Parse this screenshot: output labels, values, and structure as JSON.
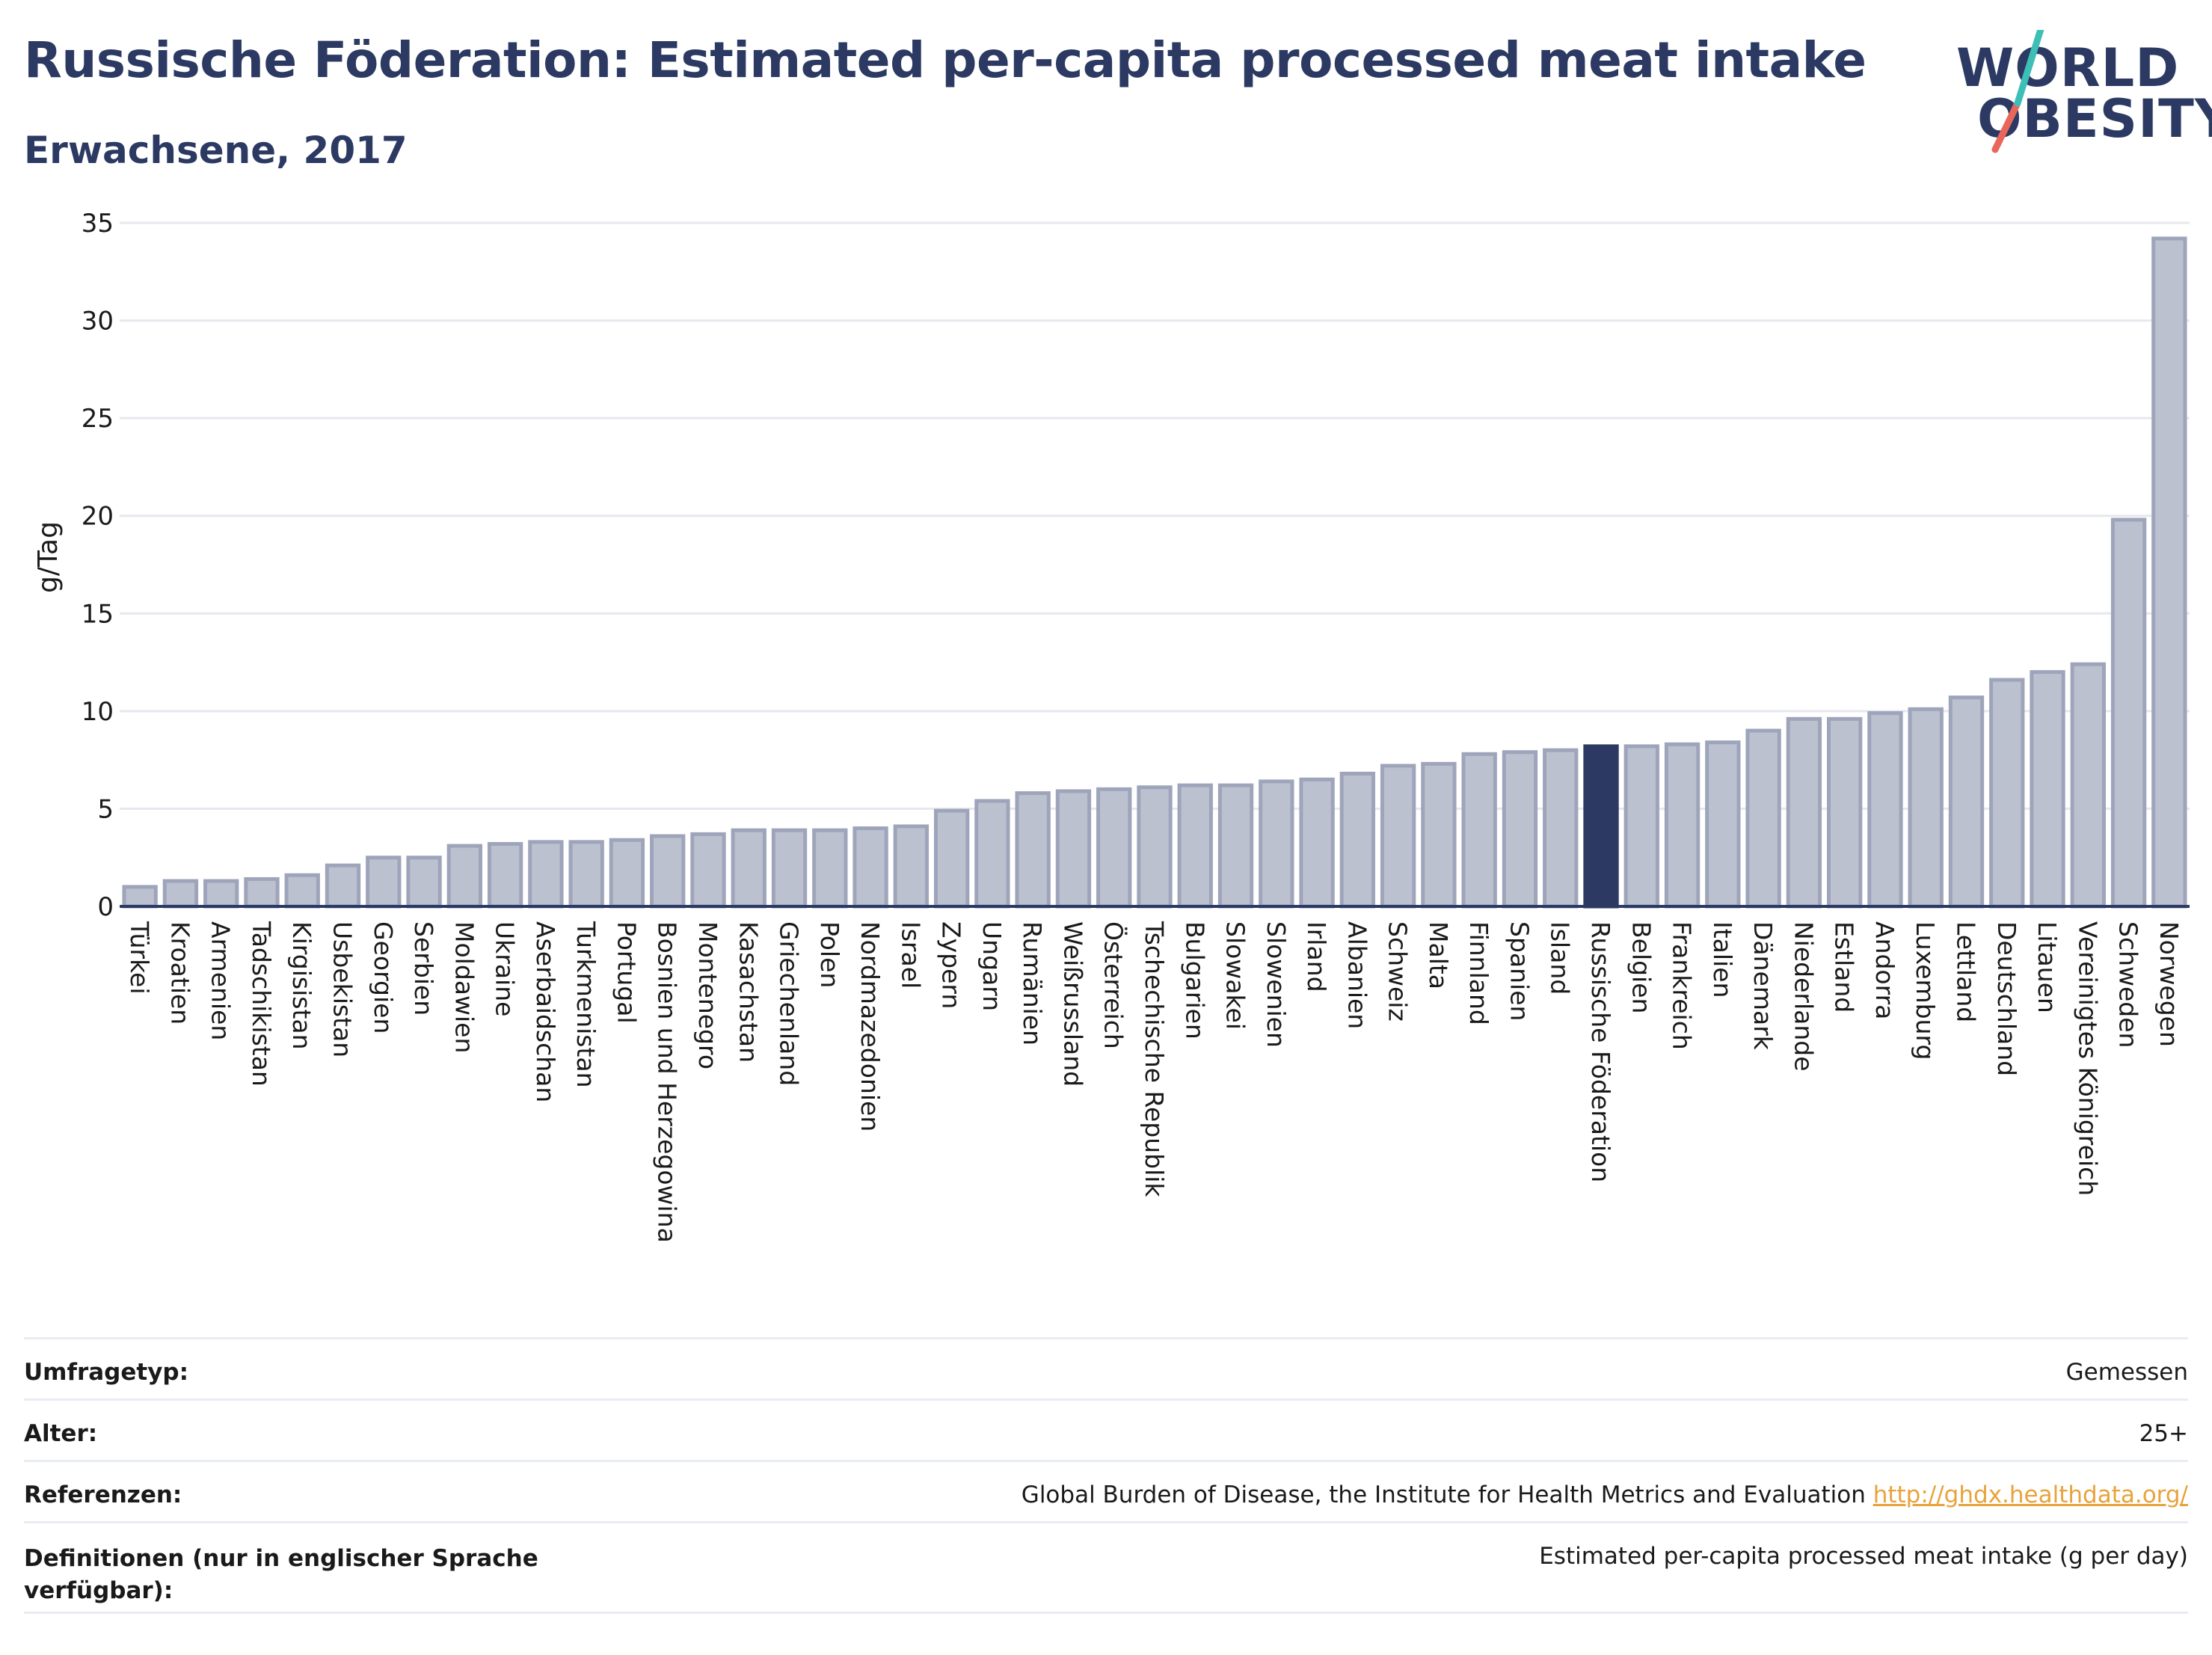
{
  "header": {
    "title": "Russische Föderation: Estimated per-capita processed meat intake",
    "subtitle": "Erwachsene, 2017"
  },
  "logo": {
    "line1": "WORLD",
    "line2": "OBESITY",
    "colors": {
      "text": "#2c3a63",
      "slash_top": "#3dbfb8",
      "slash_bottom": "#e8675a"
    }
  },
  "colors": {
    "bar_fill": "#bcc1cf",
    "bar_stroke": "#9ea5bb",
    "highlight": "#2c3a63",
    "axis_text": "#1a1a1a",
    "grid": "#e6e8ee"
  },
  "chart_data": {
    "type": "bar",
    "ylabel": "g/Tag",
    "ylim": [
      0,
      35
    ],
    "yticks": [
      0,
      5,
      10,
      15,
      20,
      25,
      30,
      35
    ],
    "grid": true,
    "highlight": "Russische Föderation",
    "categories": [
      "Türkei",
      "Kroatien",
      "Armenien",
      "Tadschikistan",
      "Kirgisistan",
      "Usbekistan",
      "Georgien",
      "Serbien",
      "Moldawien",
      "Ukraine",
      "Aserbaidschan",
      "Turkmenistan",
      "Portugal",
      "Bosnien und Herzegowina",
      "Montenegro",
      "Kasachstan",
      "Griechenland",
      "Polen",
      "Nordmazedonien",
      "Israel",
      "Zypern",
      "Ungarn",
      "Rumänien",
      "Weißrussland",
      "Österreich",
      "Tschechische Republik",
      "Bulgarien",
      "Slowakei",
      "Slowenien",
      "Irland",
      "Albanien",
      "Schweiz",
      "Malta",
      "Finnland",
      "Spanien",
      "Island",
      "Russische Föderation",
      "Belgien",
      "Frankreich",
      "Italien",
      "Dänemark",
      "Niederlande",
      "Estland",
      "Andorra",
      "Luxemburg",
      "Lettland",
      "Deutschland",
      "Litauen",
      "Vereinigtes Königreich",
      "Schweden",
      "Norwegen"
    ],
    "values": [
      1.0,
      1.3,
      1.3,
      1.4,
      1.6,
      2.1,
      2.5,
      2.5,
      3.1,
      3.2,
      3.3,
      3.3,
      3.4,
      3.6,
      3.7,
      3.9,
      3.9,
      3.9,
      4.0,
      4.1,
      4.9,
      5.4,
      5.8,
      5.9,
      6.0,
      6.1,
      6.2,
      6.2,
      6.4,
      6.5,
      6.8,
      7.2,
      7.3,
      7.8,
      7.9,
      8.0,
      8.2,
      8.2,
      8.3,
      8.4,
      9.0,
      9.6,
      9.6,
      9.9,
      10.1,
      10.7,
      11.6,
      12.0,
      12.4,
      19.8,
      34.2
    ]
  },
  "info": [
    {
      "label": "Umfragetyp:",
      "value": "Gemessen"
    },
    {
      "label": "Alter:",
      "value": "25+"
    },
    {
      "label": "Referenzen:",
      "value": "Global Burden of Disease, the Institute for Health Metrics and Evaluation",
      "link": "http://ghdx.healthdata.org/"
    },
    {
      "label": "Definitionen (nur in englischer Sprache verfügbar):",
      "value": "Estimated per-capita processed meat intake (g per day)"
    }
  ]
}
